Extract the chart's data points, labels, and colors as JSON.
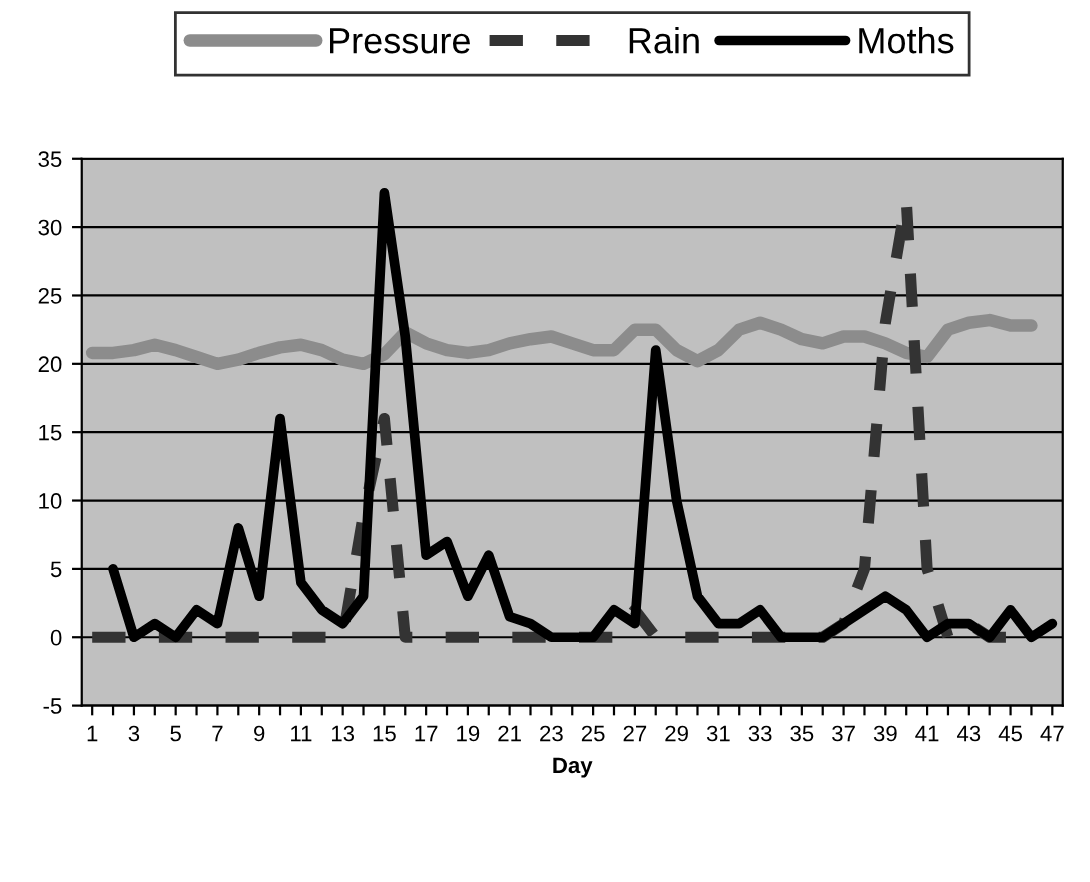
{
  "chart_data": {
    "type": "line",
    "xlabel": "Day",
    "categories": [
      "1",
      null,
      "3",
      null,
      "5",
      null,
      "7",
      null,
      "9",
      null,
      "11",
      null,
      "13",
      null,
      "15",
      null,
      "17",
      null,
      "19",
      null,
      "21",
      null,
      "23",
      null,
      "25",
      null,
      "27",
      null,
      "29",
      null,
      "31",
      null,
      "33",
      null,
      "35",
      null,
      "37",
      null,
      "39",
      null,
      "41",
      null,
      "43",
      null,
      "45",
      null,
      "47"
    ],
    "series": [
      {
        "name": "Pressure",
        "color": "#8c8c8c",
        "line_style": "solid",
        "values": [
          20.8,
          20.8,
          21,
          21.4,
          21,
          20.5,
          20,
          20.3,
          20.8,
          21.2,
          21.4,
          21,
          20.3,
          20,
          20.7,
          22.3,
          21.5,
          21,
          20.8,
          21,
          21.5,
          21.8,
          22,
          21.5,
          21,
          21,
          22.5,
          22.5,
          21,
          20.2,
          21,
          22.5,
          23,
          22.5,
          21.8,
          21.5,
          22,
          22,
          21.5,
          20.8,
          20.5,
          22.5,
          23,
          23.2,
          22.8,
          22.8,
          null
        ]
      },
      {
        "name": "Rain",
        "color": "#333333",
        "line_style": "dashed",
        "values": [
          0,
          0,
          0,
          0,
          0,
          0,
          0,
          0,
          0,
          0,
          0,
          0,
          0,
          9,
          16,
          0,
          0,
          0,
          0,
          0,
          0,
          0,
          0,
          0,
          0,
          0,
          2,
          0,
          0,
          0,
          0,
          0,
          0,
          0,
          0,
          0,
          1,
          5,
          23,
          32,
          5,
          0,
          1,
          0,
          0,
          0,
          null
        ]
      },
      {
        "name": "Moths",
        "color": "#000000",
        "line_style": "solid",
        "values": [
          null,
          5,
          0,
          1,
          0,
          2,
          1,
          8,
          3,
          16,
          4,
          2,
          1,
          3,
          32.5,
          22,
          6,
          7,
          3,
          6,
          1.5,
          1,
          0,
          0,
          0,
          2,
          1,
          21,
          10,
          3,
          1,
          1,
          2,
          0,
          0,
          0,
          1,
          2,
          3,
          2,
          0,
          1,
          1,
          0,
          2,
          0,
          1
        ]
      }
    ],
    "ylim": [
      -5,
      35
    ],
    "yticks": [
      -5,
      0,
      5,
      10,
      15,
      20,
      25,
      30,
      35
    ],
    "grid": "y",
    "legend": "top"
  }
}
